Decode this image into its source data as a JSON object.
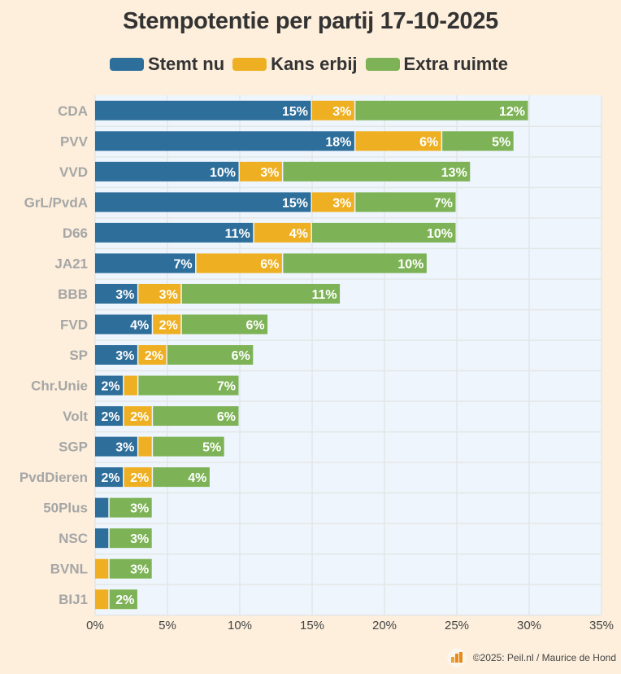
{
  "chart_data": {
    "type": "bar",
    "orientation": "horizontal",
    "stacked": true,
    "title": "Stempotentie per partij 17-10-2025",
    "xlabel": "",
    "ylabel": "",
    "xlim": [
      0,
      35
    ],
    "x_ticks": [
      0,
      5,
      10,
      15,
      20,
      25,
      30,
      35
    ],
    "x_tick_labels": [
      "0%",
      "5%",
      "10%",
      "15%",
      "20%",
      "25%",
      "30%",
      "35%"
    ],
    "grid": true,
    "legend_position": "top-center",
    "categories": [
      "CDA",
      "PVV",
      "VVD",
      "GrL/PvdA",
      "D66",
      "JA21",
      "BBB",
      "FVD",
      "SP",
      "Chr.Unie",
      "Volt",
      "SGP",
      "PvdDieren",
      "50Plus",
      "NSC",
      "BVNL",
      "BIJ1"
    ],
    "series": [
      {
        "name": "Stemt nu",
        "color": "#2e6e9b",
        "values": [
          15,
          18,
          10,
          15,
          11,
          7,
          3,
          4,
          3,
          2,
          2,
          3,
          2,
          1,
          1,
          0,
          0
        ],
        "labels": [
          "15%",
          "18%",
          "10%",
          "15%",
          "11%",
          "7%",
          "3%",
          "4%",
          "3%",
          "2%",
          "2%",
          "3%",
          "2%",
          "",
          "",
          "",
          ""
        ]
      },
      {
        "name": "Kans erbij",
        "color": "#eeb022",
        "values": [
          3,
          6,
          3,
          3,
          4,
          6,
          3,
          2,
          2,
          1,
          2,
          1,
          2,
          0,
          0,
          1,
          1
        ],
        "labels": [
          "3%",
          "6%",
          "3%",
          "3%",
          "4%",
          "6%",
          "3%",
          "2%",
          "2%",
          "",
          "2%",
          "",
          "2%",
          "",
          "",
          "",
          ""
        ]
      },
      {
        "name": "Extra ruimte",
        "color": "#7db356",
        "values": [
          12,
          5,
          13,
          7,
          10,
          10,
          11,
          6,
          6,
          7,
          6,
          5,
          4,
          3,
          3,
          3,
          2
        ],
        "labels": [
          "12%",
          "5%",
          "13%",
          "7%",
          "10%",
          "10%",
          "11%",
          "6%",
          "6%",
          "7%",
          "6%",
          "5%",
          "4%",
          "3%",
          "3%",
          "3%",
          "2%"
        ]
      }
    ]
  },
  "footer": {
    "logo_text": "Peil.nl",
    "credit": "©2025: Peil.nl / Maurice de Hond"
  }
}
